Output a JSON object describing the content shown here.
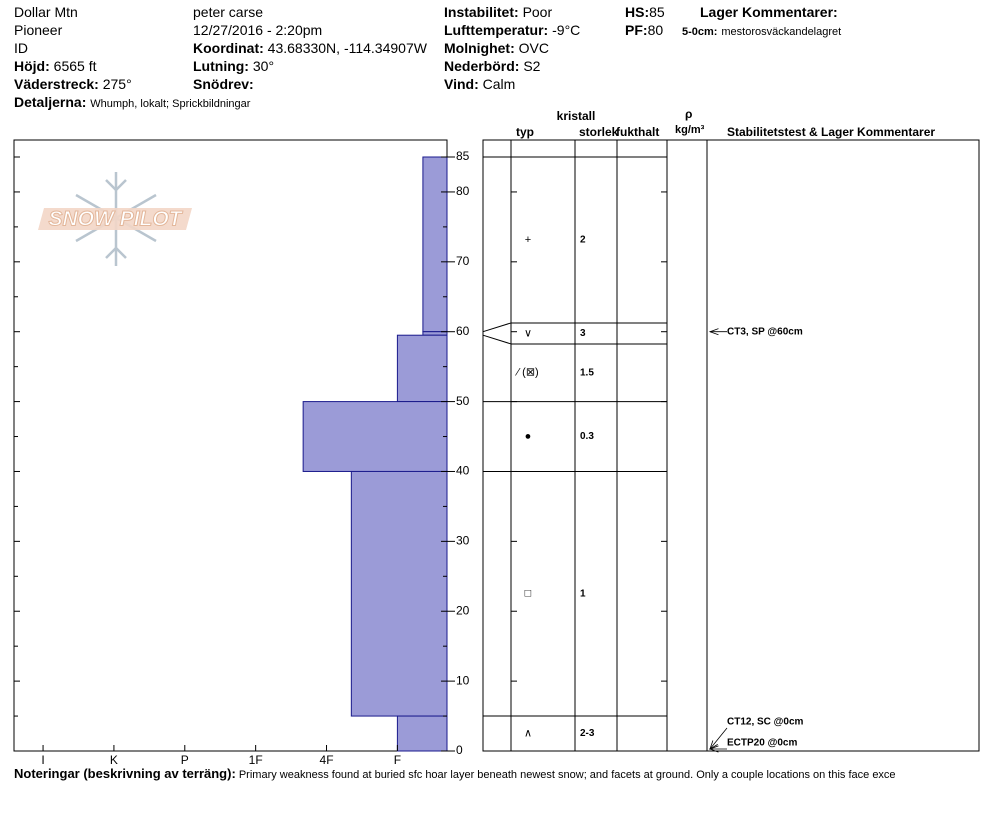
{
  "header": {
    "site": "Dollar Mtn",
    "range": "Pioneer",
    "state": "ID",
    "elevation": {
      "label": "Höjd:",
      "value": "6565 ft"
    },
    "aspect": {
      "label": "Väderstreck:",
      "value": "275°"
    },
    "details": {
      "label": "Detaljerna:",
      "value": "Whumph, lokalt; Sprickbildningar"
    },
    "observer": "peter carse",
    "datetime": "12/27/2016 - 2:20pm",
    "coordinates": {
      "label": "Koordinat:",
      "value": "43.68330N, -114.34907W"
    },
    "slope": {
      "label": "Lutning:",
      "value": "30°"
    },
    "wind_loading": {
      "label": "Snödrev:"
    },
    "instability": {
      "label": "Instabilitet:",
      "value": "Poor"
    },
    "air_temp": {
      "label": "Lufttemperatur:",
      "value": "-9°C"
    },
    "sky": {
      "label": "Molnighet:",
      "value": "OVC"
    },
    "precip": {
      "label": "Nederbörd:",
      "value": "S2"
    },
    "wind": {
      "label": "Vind:",
      "value": "Calm"
    },
    "hs": {
      "label": "HS:",
      "value": 85
    },
    "pf": {
      "label": "PF:",
      "value": 80
    },
    "layer_comments": {
      "title": "Lager Kommentarer:",
      "items": [
        {
          "label": "5-0cm:",
          "value": "mestorosväckandelagret"
        }
      ]
    }
  },
  "logo": "SNOW PILOT",
  "chart_data": {
    "type": "bar",
    "orientation": "horizontal",
    "color": "#9b9bd7",
    "edge_color": "#1a1a8c",
    "ylim": [
      0,
      85
    ],
    "yticks": [
      0,
      10,
      20,
      30,
      40,
      50,
      60,
      70,
      80,
      85
    ],
    "minor_yticks": [
      5,
      15,
      25,
      35,
      45,
      55,
      65,
      75
    ],
    "xlim": [
      6.41,
      0.3
    ],
    "xticks": [
      {
        "value": 6,
        "label": "I"
      },
      {
        "value": 5,
        "label": "K"
      },
      {
        "value": 4,
        "label": "P"
      },
      {
        "value": 3,
        "label": "1F"
      },
      {
        "value": 2,
        "label": "4F"
      },
      {
        "value": 1,
        "label": "F"
      }
    ],
    "layers": [
      {
        "top": 85,
        "bottom": 60,
        "hardness": 0.64,
        "grain": "+",
        "size": "2"
      },
      {
        "top": 60,
        "bottom": 59.5,
        "hardness": 0.64,
        "grain": "∨",
        "size": "3"
      },
      {
        "top": 59.5,
        "bottom": 50,
        "hardness": 1,
        "grain": "⁄ (⊠)",
        "size": "1.5"
      },
      {
        "top": 50,
        "bottom": 40,
        "hardness": 2.33,
        "grain": "●",
        "size": "0.3"
      },
      {
        "top": 40,
        "bottom": 5,
        "hardness": 1.65,
        "grain": "□",
        "size": "1"
      },
      {
        "top": 5,
        "bottom": 0,
        "hardness": 1,
        "grain": "∧",
        "size": "2-3"
      }
    ],
    "table_headers": {
      "crystal": "kristall",
      "type": "typ",
      "size": "storlek",
      "moisture": "fukthalt",
      "rho": "ρ",
      "density_unit": "kg/m³",
      "tests": "Stabilitetstest & Lager Kommentarer"
    },
    "tests": [
      {
        "label": "CT3, SP @60cm",
        "depth": 60
      },
      {
        "label": "CT12, SC @0cm",
        "depth": 0
      },
      {
        "label": "ECTP20 @0cm",
        "depth": 0
      }
    ]
  },
  "notes": {
    "label": "Noteringar (beskrivning av terräng):",
    "text": "Primary weakness found at buried sfc hoar layer beneath newest snow; and facets at ground. Only a couple locations on this face exce"
  }
}
